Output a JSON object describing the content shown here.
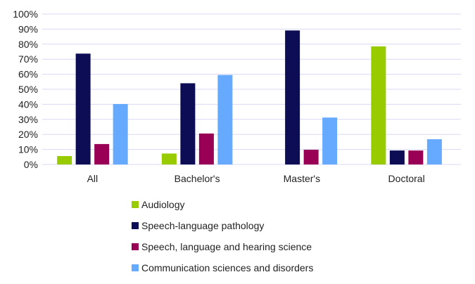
{
  "chart_data": {
    "type": "bar",
    "categories": [
      "All",
      "Bachelor's",
      "Master's",
      "Doctoral"
    ],
    "series": [
      {
        "name": "Audiology",
        "color": "#99cc00",
        "values": [
          5.6,
          7.3,
          0,
          78.5
        ]
      },
      {
        "name": "Speech-language pathology",
        "color": "#0d0d55",
        "values": [
          73.7,
          54.0,
          89.1,
          9.3
        ]
      },
      {
        "name": "Speech, language and hearing science",
        "color": "#990055",
        "values": [
          13.6,
          20.6,
          9.8,
          9.3
        ]
      },
      {
        "name": "Communication sciences and disorders",
        "color": "#66aaff",
        "values": [
          40.2,
          59.5,
          31.2,
          16.8
        ]
      }
    ],
    "yticks": [
      "0%",
      "10%",
      "20%",
      "30%",
      "40%",
      "50%",
      "60%",
      "70%",
      "80%",
      "90%",
      "100%"
    ],
    "ylim": [
      0,
      100
    ],
    "grid": true,
    "gridColor": "#d8d8f4",
    "legend": "bottom"
  }
}
